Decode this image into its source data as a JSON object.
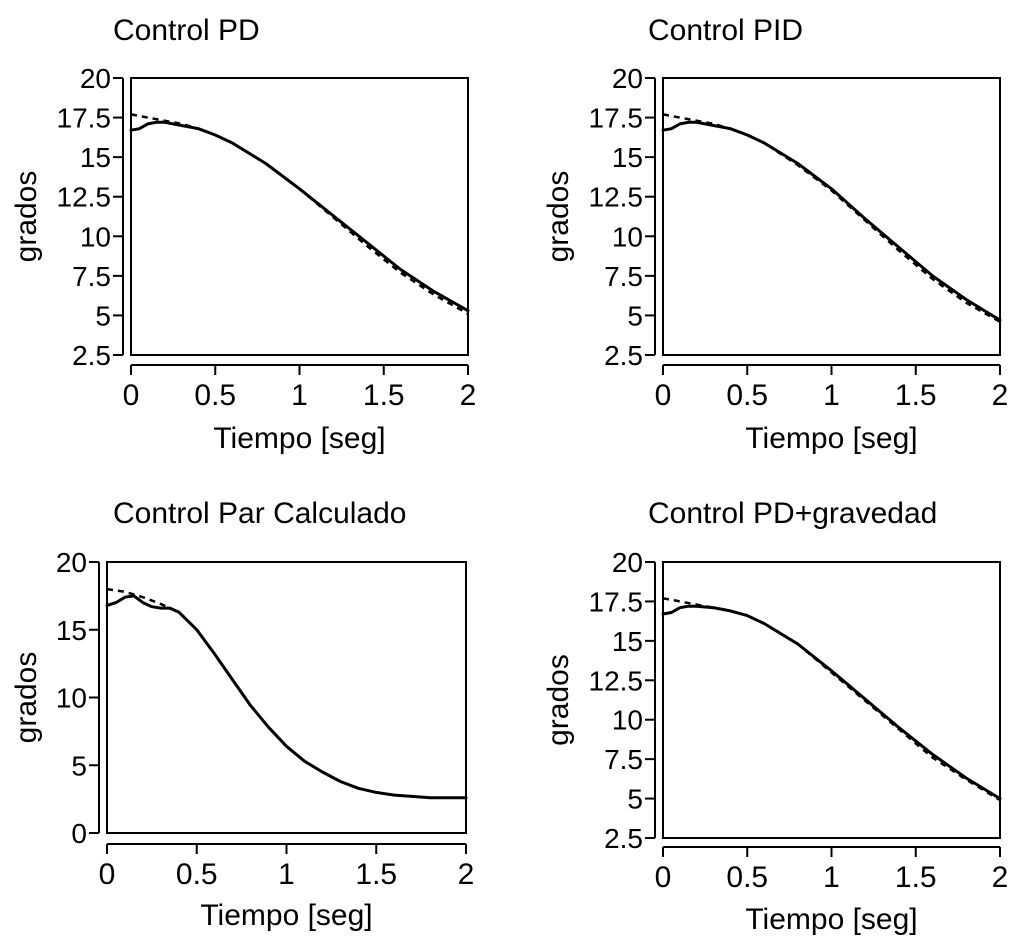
{
  "chart_data": [
    {
      "type": "line",
      "title": "Control PD",
      "xlabel": "Tiempo [seg]",
      "ylabel": "grados",
      "xlim": [
        0,
        2
      ],
      "ylim": [
        2.5,
        20
      ],
      "xticks": [
        "0",
        "0.5",
        "1",
        "1.5",
        "2"
      ],
      "yticks": [
        "2.5",
        "5",
        "7.5",
        "10",
        "12.5",
        "15",
        "17.5",
        "20"
      ],
      "series": [
        {
          "style": "solid",
          "x": [
            0,
            0.05,
            0.1,
            0.15,
            0.2,
            0.3,
            0.4,
            0.5,
            0.6,
            0.8,
            1.0,
            1.2,
            1.4,
            1.6,
            1.8,
            2.0
          ],
          "y": [
            16.7,
            16.8,
            17.1,
            17.2,
            17.2,
            17.0,
            16.8,
            16.4,
            15.9,
            14.6,
            13.0,
            11.3,
            9.6,
            7.9,
            6.5,
            5.3
          ]
        },
        {
          "style": "dashed",
          "x": [
            0,
            0.1,
            0.2,
            0.3,
            0.4,
            0.5,
            0.6,
            0.8,
            1.0,
            1.2,
            1.4,
            1.6,
            1.8,
            2.0
          ],
          "y": [
            17.7,
            17.5,
            17.3,
            17.1,
            16.8,
            16.4,
            15.9,
            14.6,
            13.0,
            11.2,
            9.4,
            7.7,
            6.3,
            5.1
          ]
        }
      ]
    },
    {
      "type": "line",
      "title": "Control PID",
      "xlabel": "Tiempo [seg]",
      "ylabel": "grados",
      "xlim": [
        0,
        2
      ],
      "ylim": [
        2.5,
        20
      ],
      "xticks": [
        "0",
        "0.5",
        "1",
        "1.5",
        "2"
      ],
      "yticks": [
        "2.5",
        "5",
        "7.5",
        "10",
        "12.5",
        "15",
        "17.5",
        "20"
      ],
      "series": [
        {
          "style": "solid",
          "x": [
            0,
            0.05,
            0.1,
            0.15,
            0.2,
            0.3,
            0.4,
            0.5,
            0.6,
            0.8,
            1.0,
            1.2,
            1.4,
            1.6,
            1.8,
            2.0
          ],
          "y": [
            16.7,
            16.8,
            17.1,
            17.2,
            17.2,
            17.0,
            16.8,
            16.4,
            15.9,
            14.6,
            13.0,
            11.1,
            9.3,
            7.5,
            6.0,
            4.7
          ]
        },
        {
          "style": "dashed",
          "x": [
            0,
            0.1,
            0.2,
            0.3,
            0.4,
            0.5,
            0.6,
            0.8,
            1.0,
            1.2,
            1.4,
            1.6,
            1.8,
            2.0
          ],
          "y": [
            17.7,
            17.5,
            17.3,
            17.1,
            16.8,
            16.4,
            15.9,
            14.5,
            12.9,
            11.0,
            9.1,
            7.3,
            5.8,
            4.6
          ]
        }
      ]
    },
    {
      "type": "line",
      "title": "Control Par Calculado",
      "xlabel": "Tiempo [seg]",
      "ylabel": "grados",
      "xlim": [
        0,
        2
      ],
      "ylim": [
        0,
        20
      ],
      "xticks": [
        "0",
        "0.5",
        "1",
        "1.5",
        "2"
      ],
      "yticks": [
        "0",
        "5",
        "10",
        "15",
        "20"
      ],
      "series": [
        {
          "style": "solid",
          "x": [
            0,
            0.05,
            0.1,
            0.15,
            0.2,
            0.25,
            0.3,
            0.35,
            0.4,
            0.5,
            0.6,
            0.7,
            0.8,
            0.9,
            1.0,
            1.1,
            1.2,
            1.3,
            1.4,
            1.5,
            1.6,
            1.7,
            1.8,
            1.9,
            2.0
          ],
          "y": [
            16.8,
            17.0,
            17.4,
            17.5,
            17.0,
            16.7,
            16.6,
            16.6,
            16.3,
            15.0,
            13.2,
            11.3,
            9.4,
            7.8,
            6.4,
            5.3,
            4.5,
            3.8,
            3.3,
            3.0,
            2.8,
            2.7,
            2.6,
            2.6,
            2.6
          ]
        },
        {
          "style": "dashed",
          "x": [
            0,
            0.1,
            0.2,
            0.3,
            0.4,
            0.45
          ],
          "y": [
            18.0,
            17.8,
            17.4,
            16.9,
            16.3,
            15.7
          ]
        }
      ]
    },
    {
      "type": "line",
      "title": "Control PD+gravedad",
      "xlabel": "Tiempo [seg]",
      "ylabel": "grados",
      "xlim": [
        0,
        2
      ],
      "ylim": [
        2.5,
        20
      ],
      "xticks": [
        "0",
        "0.5",
        "1",
        "1.5",
        "2"
      ],
      "yticks": [
        "2.5",
        "5",
        "7.5",
        "10",
        "12.5",
        "15",
        "17.5",
        "20"
      ],
      "series": [
        {
          "style": "solid",
          "x": [
            0,
            0.05,
            0.1,
            0.15,
            0.2,
            0.3,
            0.4,
            0.5,
            0.6,
            0.8,
            1.0,
            1.2,
            1.4,
            1.6,
            1.8,
            2.0
          ],
          "y": [
            16.7,
            16.8,
            17.1,
            17.2,
            17.2,
            17.1,
            16.9,
            16.6,
            16.1,
            14.8,
            13.1,
            11.3,
            9.5,
            7.8,
            6.3,
            5.0
          ]
        },
        {
          "style": "dashed",
          "x": [
            0,
            0.1,
            0.2,
            0.3,
            0.4,
            0.5,
            0.6,
            0.8,
            1.0,
            1.2,
            1.4,
            1.6,
            1.8,
            2.0
          ],
          "y": [
            17.7,
            17.5,
            17.3,
            17.1,
            16.9,
            16.6,
            16.1,
            14.8,
            13.0,
            11.2,
            9.4,
            7.6,
            6.2,
            4.9
          ]
        }
      ]
    }
  ]
}
